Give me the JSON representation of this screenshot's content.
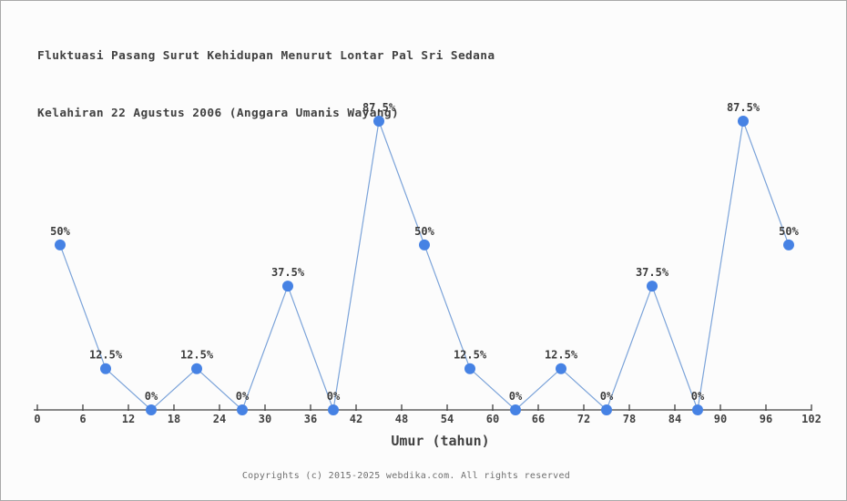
{
  "header": {
    "title_line1": "Fluktuasi Pasang Surut Kehidupan Menurut Lontar Pal Sri Sedana",
    "title_line2": "Kelahiran 22 Agustus 2006 (Anggara Umanis Wayang)"
  },
  "footer": {
    "copyright": "Copyrights (c) 2015-2025 webdika.com. All rights reserved"
  },
  "chart_data": {
    "type": "line",
    "title": "Fluktuasi Pasang Surut Kehidupan Menurut Lontar Pal Sri Sedana Kelahiran 22 Agustus 2006 (Anggara Umanis Wayang)",
    "xlabel": "Umur (tahun)",
    "ylabel": "",
    "x": [
      3,
      9,
      15,
      21,
      27,
      33,
      39,
      45,
      51,
      57,
      63,
      69,
      75,
      81,
      87,
      93,
      99
    ],
    "values": [
      50,
      12.5,
      0,
      12.5,
      0,
      37.5,
      0,
      87.5,
      50,
      12.5,
      0,
      12.5,
      0,
      37.5,
      0,
      87.5,
      50
    ],
    "point_labels": [
      "50%",
      "12.5%",
      "0%",
      "12.5%",
      "0%",
      "37.5%",
      "0%",
      "87.5%",
      "50%",
      "12.5%",
      "0%",
      "12.5%",
      "0%",
      "37.5%",
      "0%",
      "87.5%",
      "50%"
    ],
    "x_ticks": [
      0,
      6,
      12,
      18,
      24,
      30,
      36,
      42,
      48,
      54,
      60,
      66,
      72,
      78,
      84,
      90,
      96,
      102
    ],
    "xlim": [
      0,
      102
    ],
    "ylim": [
      0,
      100
    ],
    "grid": false,
    "legend": "none",
    "colors": {
      "line": "#7ba3d9",
      "marker": "#4682e4",
      "axis": "#414141",
      "point_label": "#3c3c3c",
      "background": "#fcfcfc",
      "border": "#a9a9a9"
    }
  }
}
